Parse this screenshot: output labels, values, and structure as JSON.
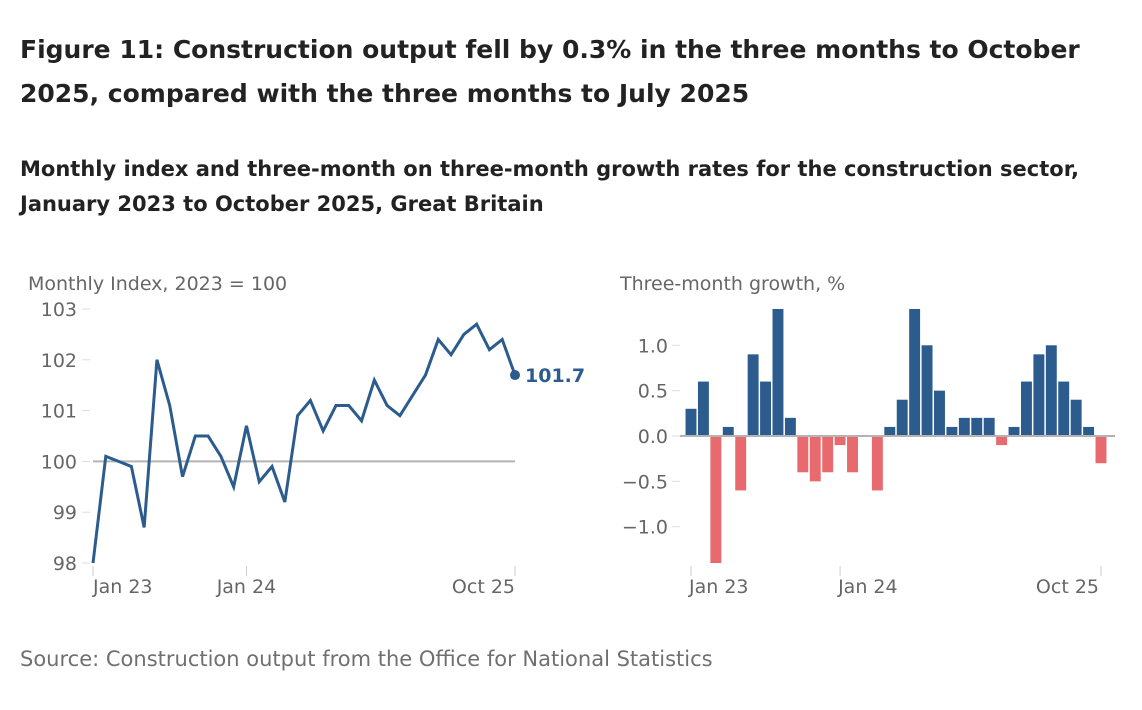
{
  "title": "Figure 11: Construction output fell by 0.3% in the three months to October 2025, compared with the three months to July 2025",
  "subtitle": "Monthly index and three-month on three-month growth rates for the construction sector, January 2023 to October 2025, Great Britain",
  "source": "Source: Construction output from the Office for National Statistics",
  "colors": {
    "line": "#2c5b8e",
    "positive": "#2c5b8e",
    "negative": "#e8696e",
    "baseline": "#b3b3b3"
  },
  "chart_data": [
    {
      "type": "line",
      "ylabel": "Monthly Index, 2023 = 100",
      "ylim": [
        98,
        103
      ],
      "yticks": [
        "98",
        "99",
        "100",
        "101",
        "102",
        "103"
      ],
      "xticks": [
        {
          "label": "Jan 23",
          "index": 0
        },
        {
          "label": "Jan 24",
          "index": 12
        },
        {
          "label": "Oct 25",
          "index": 33
        }
      ],
      "reference_line": 100,
      "end_label": "101.7",
      "values": [
        98.0,
        100.1,
        100.0,
        99.9,
        98.7,
        102.0,
        101.1,
        99.7,
        100.5,
        100.5,
        100.1,
        99.5,
        100.7,
        99.6,
        99.9,
        99.2,
        100.9,
        101.2,
        100.6,
        101.1,
        101.1,
        100.8,
        101.6,
        101.1,
        100.9,
        101.3,
        101.7,
        102.4,
        102.1,
        102.5,
        102.7,
        102.2,
        102.4,
        101.7
      ]
    },
    {
      "type": "bar",
      "ylabel": "Three-month growth, %",
      "ylim": [
        -1.4,
        1.4
      ],
      "yticks": [
        "−1.0",
        "−0.5",
        "0.0",
        "0.5",
        "1.0"
      ],
      "ytick_values": [
        -1.0,
        -0.5,
        0.0,
        0.5,
        1.0
      ],
      "xticks": [
        {
          "label": "Jan 23",
          "index": 0
        },
        {
          "label": "Jan 24",
          "index": 12
        },
        {
          "label": "Oct 25",
          "index": 33
        }
      ],
      "values": [
        0.3,
        0.6,
        -1.4,
        0.1,
        -0.6,
        0.9,
        0.6,
        1.4,
        0.2,
        -0.4,
        -0.5,
        -0.4,
        -0.1,
        -0.4,
        0.0,
        -0.6,
        0.1,
        0.4,
        1.4,
        1.0,
        0.5,
        0.1,
        0.2,
        0.2,
        0.2,
        -0.1,
        0.1,
        0.6,
        0.9,
        1.0,
        0.6,
        0.4,
        0.1,
        -0.3
      ]
    }
  ]
}
